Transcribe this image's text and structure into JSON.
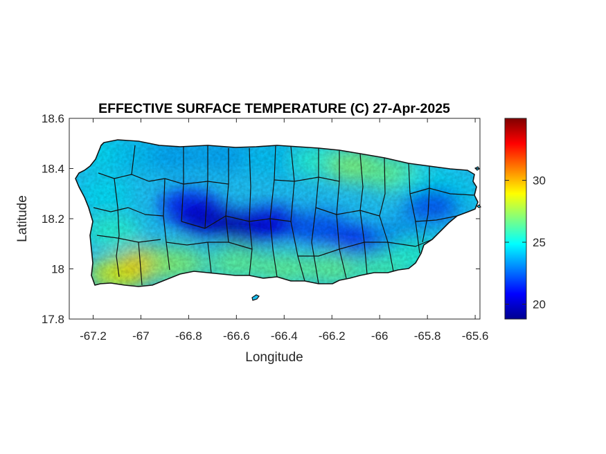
{
  "chart_data": {
    "type": "heatmap",
    "title": "EFFECTIVE SURFACE TEMPERATURE (C) 27-Apr-2025",
    "xlabel": "Longitude",
    "ylabel": "Latitude",
    "xlim": [
      -67.3,
      -65.58
    ],
    "ylim": [
      17.8,
      18.6
    ],
    "xticks": [
      -67.2,
      -67,
      -66.8,
      -66.6,
      -66.4,
      -66.2,
      -66,
      -65.8,
      -65.6
    ],
    "xtick_labels": [
      "-67.2",
      "-67",
      "-66.8",
      "-66.6",
      "-66.4",
      "-66.2",
      "-66",
      "-65.8",
      "-65.6"
    ],
    "yticks": [
      17.8,
      18,
      18.2,
      18.4,
      18.6
    ],
    "ytick_labels": [
      "17.8",
      "18",
      "18.2",
      "18.4",
      "18.6"
    ],
    "colorbar": {
      "colormap": "jet",
      "clim": [
        18.8,
        35
      ],
      "ticks": [
        20,
        25,
        30
      ],
      "tick_labels": [
        "20",
        "25",
        "30"
      ],
      "placement": "right"
    },
    "field_notes": {
      "coldest_area": "central mountain ridge, about 19-21 C",
      "warmest_area": "southwest coast near -67.0, 18.0, about 29-30 C",
      "typical_coast": "about 25-28 C"
    },
    "samples": [
      {
        "lon": -67.15,
        "lat": 18.46,
        "t": 24.5
      },
      {
        "lon": -67.0,
        "lat": 18.45,
        "t": 24.0
      },
      {
        "lon": -66.85,
        "lat": 18.45,
        "t": 23.5
      },
      {
        "lon": -66.65,
        "lat": 18.45,
        "t": 23.5
      },
      {
        "lon": -66.45,
        "lat": 18.44,
        "t": 24.0
      },
      {
        "lon": -66.25,
        "lat": 18.43,
        "t": 25.5
      },
      {
        "lon": -66.1,
        "lat": 18.41,
        "t": 27.0
      },
      {
        "lon": -65.95,
        "lat": 18.38,
        "t": 26.5
      },
      {
        "lon": -65.8,
        "lat": 18.33,
        "t": 25.0
      },
      {
        "lon": -65.72,
        "lat": 18.3,
        "t": 24.5
      },
      {
        "lon": -65.78,
        "lat": 18.26,
        "t": 22.0
      },
      {
        "lon": -66.8,
        "lat": 18.25,
        "t": 21.0
      },
      {
        "lon": -66.72,
        "lat": 18.19,
        "t": 20.0
      },
      {
        "lon": -66.55,
        "lat": 18.16,
        "t": 19.5
      },
      {
        "lon": -66.45,
        "lat": 18.18,
        "t": 20.5
      },
      {
        "lon": -66.25,
        "lat": 18.16,
        "t": 22.0
      },
      {
        "lon": -66.08,
        "lat": 18.1,
        "t": 21.0
      },
      {
        "lon": -65.9,
        "lat": 18.12,
        "t": 23.0
      },
      {
        "lon": -67.15,
        "lat": 18.3,
        "t": 24.5
      },
      {
        "lon": -67.12,
        "lat": 18.15,
        "t": 25.5
      },
      {
        "lon": -67.1,
        "lat": 17.98,
        "t": 28.5
      },
      {
        "lon": -66.98,
        "lat": 18.02,
        "t": 29.5
      },
      {
        "lon": -66.85,
        "lat": 18.02,
        "t": 27.0
      },
      {
        "lon": -66.6,
        "lat": 18.02,
        "t": 26.5
      },
      {
        "lon": -66.4,
        "lat": 18.0,
        "t": 26.5
      },
      {
        "lon": -66.2,
        "lat": 18.0,
        "t": 26.5
      },
      {
        "lon": -66.0,
        "lat": 18.0,
        "t": 26.0
      },
      {
        "lon": -65.85,
        "lat": 18.06,
        "t": 25.5
      }
    ]
  }
}
